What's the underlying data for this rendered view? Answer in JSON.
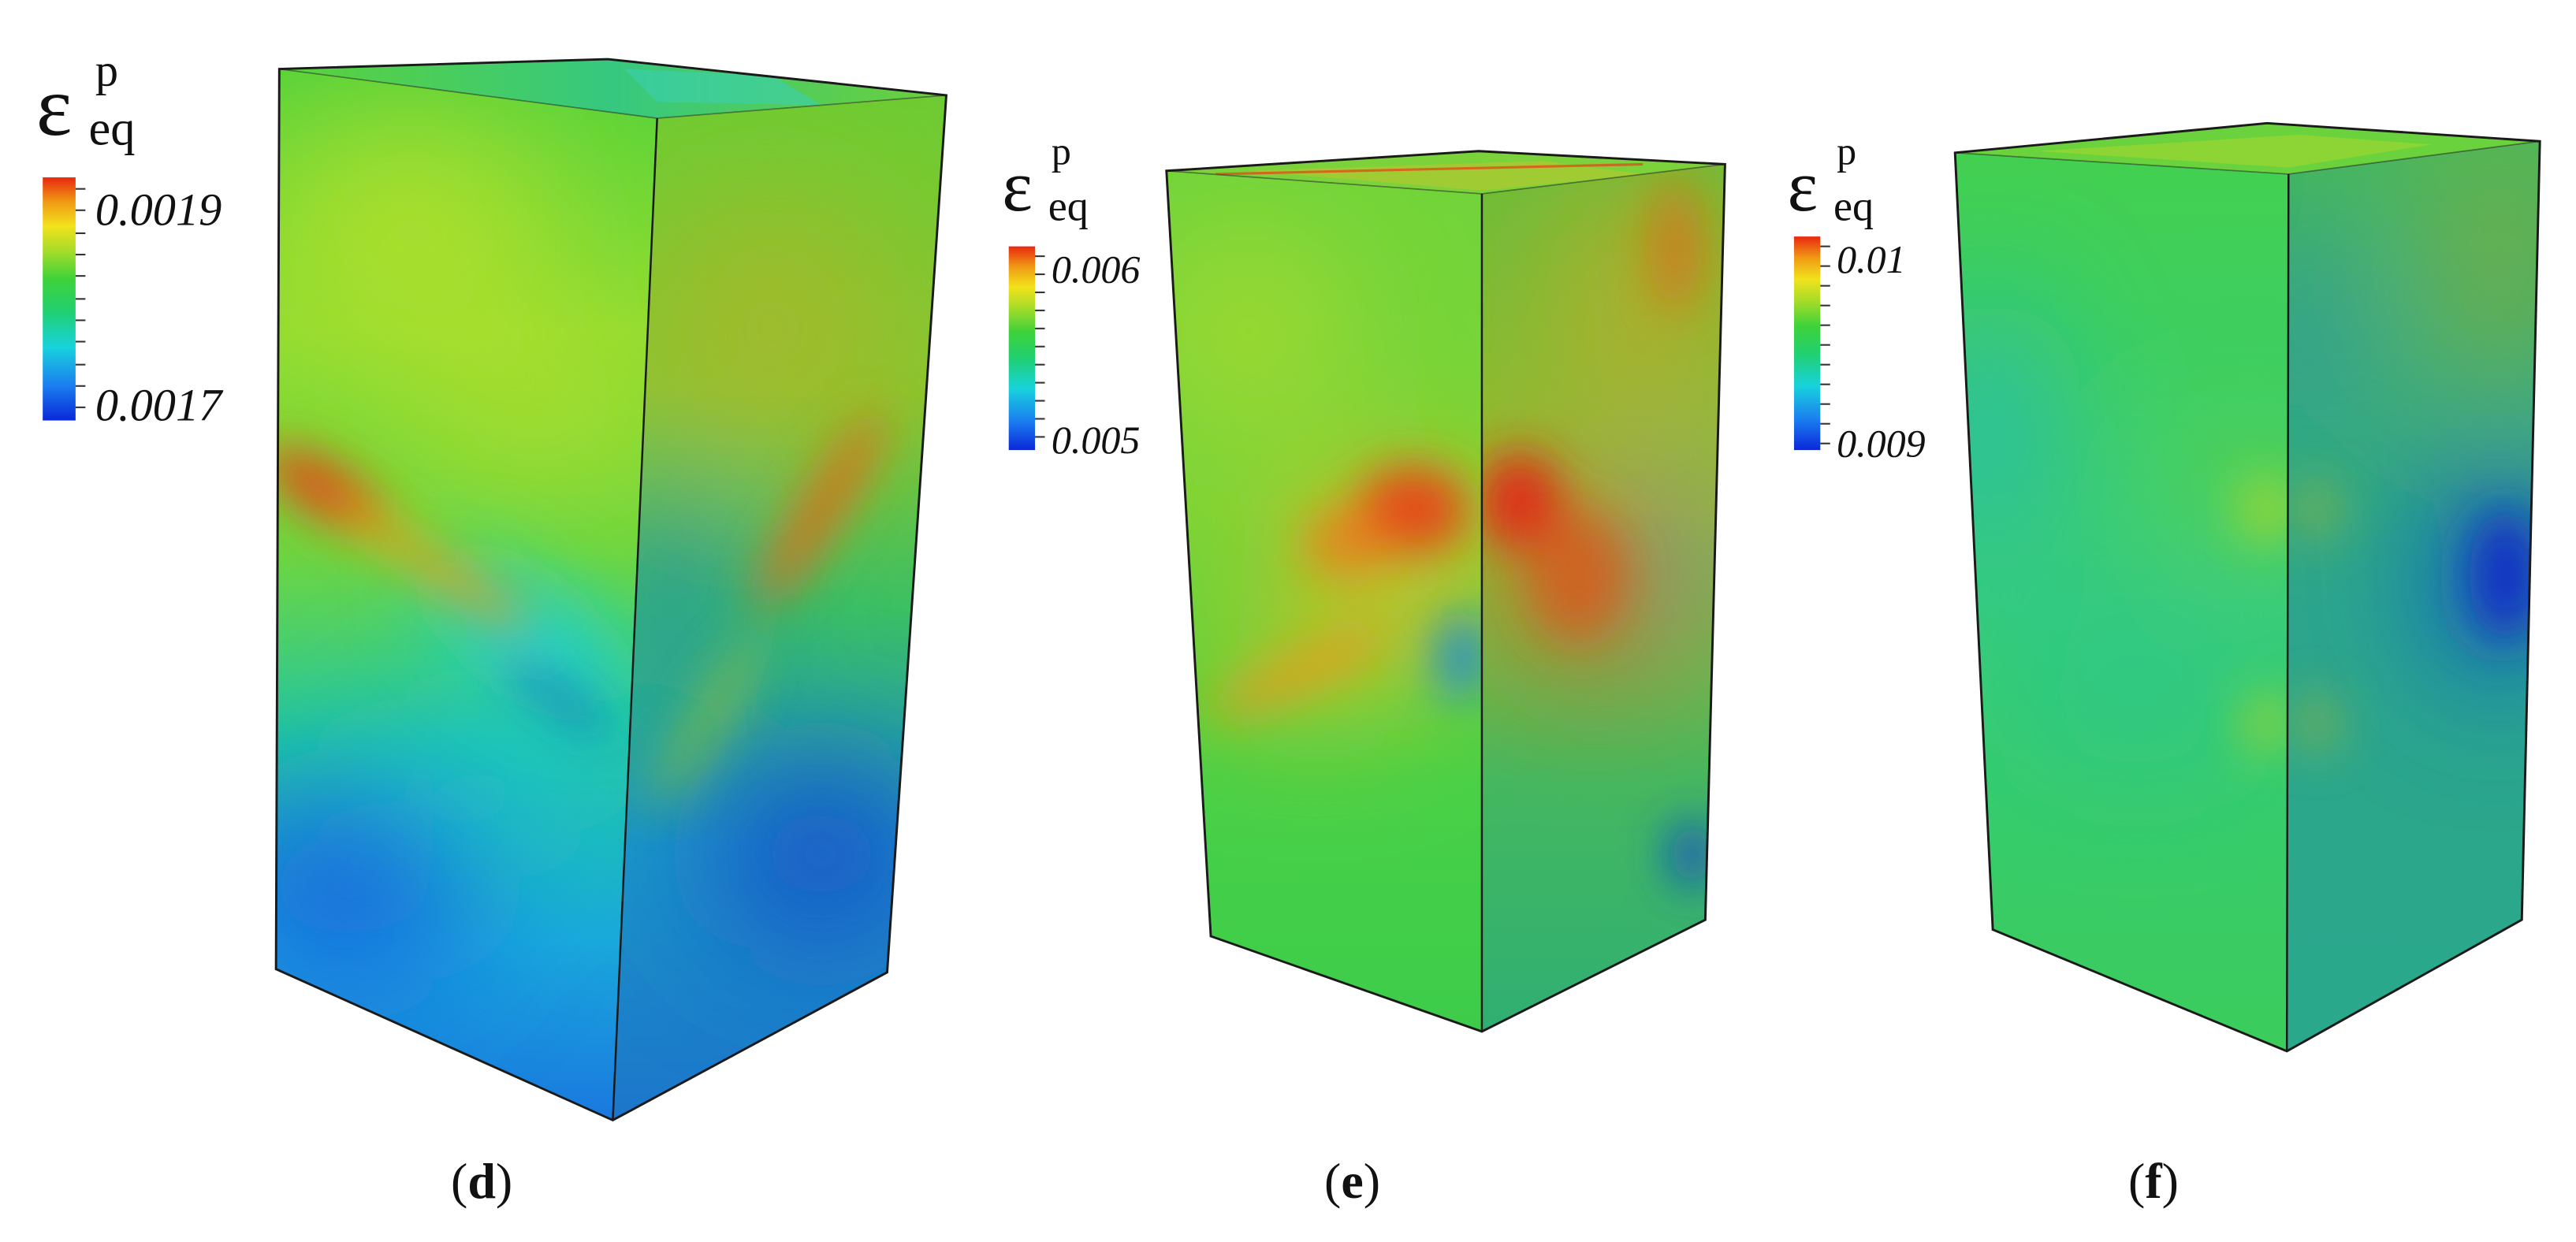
{
  "panels": [
    {
      "id": "d",
      "label": "d",
      "legend": {
        "symbol": "ε",
        "subscript": "eq",
        "superscript": "p",
        "max": "0.0019",
        "min": "0.0017"
      }
    },
    {
      "id": "e",
      "label": "e",
      "legend": {
        "symbol": "ε",
        "subscript": "eq",
        "superscript": "p",
        "max": "0.006",
        "min": "0.005"
      }
    },
    {
      "id": "f",
      "label": "f",
      "legend": {
        "symbol": "ε",
        "subscript": "eq",
        "superscript": "p",
        "max": "0.01",
        "min": "0.009"
      }
    }
  ],
  "colors": {
    "scale": [
      "#0a28d8",
      "#1a7cf0",
      "#18d2dc",
      "#20d070",
      "#3ed23a",
      "#a8dc28",
      "#f2e21c",
      "#f09a14",
      "#e8280e"
    ],
    "edge": "#1a1a1a"
  }
}
